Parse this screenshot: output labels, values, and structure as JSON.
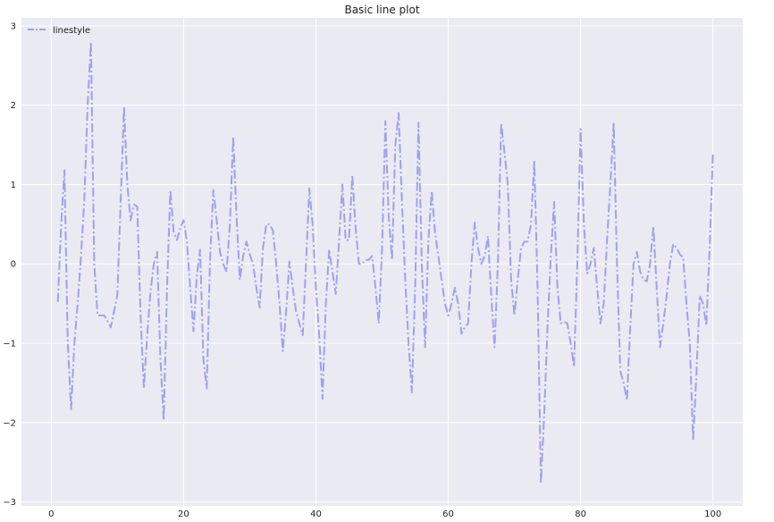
{
  "chart_data": {
    "type": "line",
    "title": "Basic line plot",
    "xlabel": "",
    "ylabel": "",
    "xlim": [
      -4.5,
      104.5
    ],
    "ylim": [
      -3.05,
      3.1
    ],
    "xticks": [
      0,
      20,
      40,
      60,
      80,
      100
    ],
    "yticks": [
      -3,
      -2,
      -1,
      0,
      1,
      2,
      3
    ],
    "grid": true,
    "legend_position": "top-left",
    "colors": {
      "plot_bg": "#eaeaf2",
      "grid": "#ffffff",
      "line": "#a0a0f0"
    },
    "series": [
      {
        "name": "linestyle",
        "linestyle": "dashdot",
        "x": [
          1,
          1.5,
          2,
          2.5,
          3,
          3.5,
          4,
          4.5,
          5,
          5.5,
          6,
          6.5,
          7,
          7.5,
          8,
          8.5,
          9,
          9.5,
          10,
          10.5,
          11,
          11.5,
          12,
          12.5,
          13,
          13.5,
          14,
          14.5,
          15,
          15.5,
          16,
          16.5,
          17,
          17.5,
          18,
          18.5,
          19,
          19.5,
          20,
          20.5,
          21,
          21.5,
          22,
          22.5,
          23,
          23.5,
          24,
          24.5,
          25,
          25.5,
          26,
          26.5,
          27,
          27.5,
          28,
          28.5,
          29,
          29.5,
          30,
          30.5,
          31,
          31.5,
          32,
          32.5,
          33,
          33.5,
          34,
          34.5,
          35,
          35.5,
          36,
          36.5,
          37,
          37.5,
          38,
          38.5,
          39,
          39.5,
          40,
          40.5,
          41,
          41.5,
          42,
          42.5,
          43,
          43.5,
          44,
          44.5,
          45,
          45.5,
          46,
          46.5,
          47,
          47.5,
          48,
          48.5,
          49,
          49.5,
          50,
          50.5,
          51,
          51.5,
          52,
          52.5,
          53,
          53.5,
          54,
          54.5,
          55,
          55.5,
          56,
          56.5,
          57,
          57.5,
          58,
          58.5,
          59,
          59.5,
          60,
          60.5,
          61,
          61.5,
          62,
          62.5,
          63,
          63.5,
          64,
          64.5,
          65,
          65.5,
          66,
          66.5,
          67,
          67.5,
          68,
          68.5,
          69,
          69.5,
          70,
          70.5,
          71,
          71.5,
          72,
          72.5,
          73,
          73.5,
          74,
          74.5,
          75,
          75.5,
          76,
          76.5,
          77,
          77.5,
          78,
          78.5,
          79,
          79.5,
          80,
          80.5,
          81,
          81.5,
          82,
          82.5,
          83,
          83.5,
          84,
          84.5,
          85,
          85.5,
          86,
          86.5,
          87,
          87.5,
          88,
          88.5,
          89,
          89.5,
          90,
          90.5,
          91,
          91.5,
          92,
          92.5,
          93,
          93.5,
          94,
          94.5,
          95,
          95.5,
          96,
          96.5,
          97,
          97.5,
          98,
          98.5,
          99,
          99.5,
          100
        ],
        "y": [
          -0.48,
          0.5,
          1.18,
          -1.0,
          -1.83,
          -1.0,
          -0.5,
          0.1,
          0.8,
          2.0,
          2.8,
          0.0,
          -0.65,
          -0.65,
          -0.65,
          -0.72,
          -0.8,
          -0.6,
          -0.38,
          0.8,
          1.98,
          1.0,
          0.55,
          0.75,
          0.72,
          -0.65,
          -1.57,
          -0.9,
          -0.35,
          0.0,
          0.15,
          -1.2,
          -1.97,
          -0.3,
          0.93,
          0.4,
          0.3,
          0.45,
          0.55,
          0.28,
          -0.3,
          -0.85,
          -0.15,
          0.18,
          -1.2,
          -1.57,
          0.05,
          0.93,
          0.55,
          0.15,
          0.0,
          -0.1,
          0.5,
          1.6,
          0.6,
          -0.2,
          0.1,
          0.28,
          0.12,
          0.0,
          -0.3,
          -0.55,
          0.2,
          0.5,
          0.5,
          0.42,
          0.0,
          -0.5,
          -1.1,
          -0.6,
          0.03,
          -0.3,
          -0.6,
          -0.75,
          -0.9,
          0.0,
          0.95,
          0.5,
          -0.3,
          -0.9,
          -1.7,
          -0.5,
          0.18,
          -0.1,
          -0.38,
          0.3,
          1.0,
          0.3,
          0.3,
          1.12,
          0.45,
          0.0,
          0.0,
          0.05,
          0.05,
          0.1,
          -0.3,
          -0.75,
          0.2,
          1.8,
          0.6,
          0.05,
          1.5,
          1.9,
          0.8,
          -0.2,
          -1.0,
          -1.62,
          -0.3,
          1.78,
          0.0,
          -1.05,
          0.3,
          0.92,
          0.4,
          0.1,
          -0.2,
          -0.5,
          -0.65,
          -0.5,
          -0.3,
          -0.5,
          -0.88,
          -0.8,
          -0.75,
          0.0,
          0.52,
          0.2,
          0.0,
          0.1,
          0.35,
          -0.4,
          -1.05,
          0.0,
          1.77,
          1.4,
          1.0,
          -0.2,
          -0.65,
          -0.2,
          0.2,
          0.28,
          0.28,
          0.5,
          1.3,
          -0.3,
          -2.77,
          -1.9,
          -0.8,
          0.1,
          0.78,
          -0.3,
          -0.75,
          -0.73,
          -0.75,
          -1.0,
          -1.3,
          0.0,
          1.7,
          0.5,
          -0.12,
          0.0,
          0.2,
          -0.3,
          -0.75,
          -0.5,
          0.3,
          1.0,
          1.78,
          0.0,
          -1.35,
          -1.5,
          -1.72,
          -0.8,
          0.0,
          0.15,
          -0.1,
          -0.2,
          -0.22,
          0.0,
          0.47,
          -0.3,
          -1.05,
          -0.75,
          -0.4,
          0.0,
          0.25,
          0.2,
          0.12,
          0.08,
          -0.5,
          -1.0,
          -2.22,
          -1.4,
          -0.4,
          -0.5,
          -0.78,
          0.2,
          1.4
        ]
      }
    ]
  }
}
